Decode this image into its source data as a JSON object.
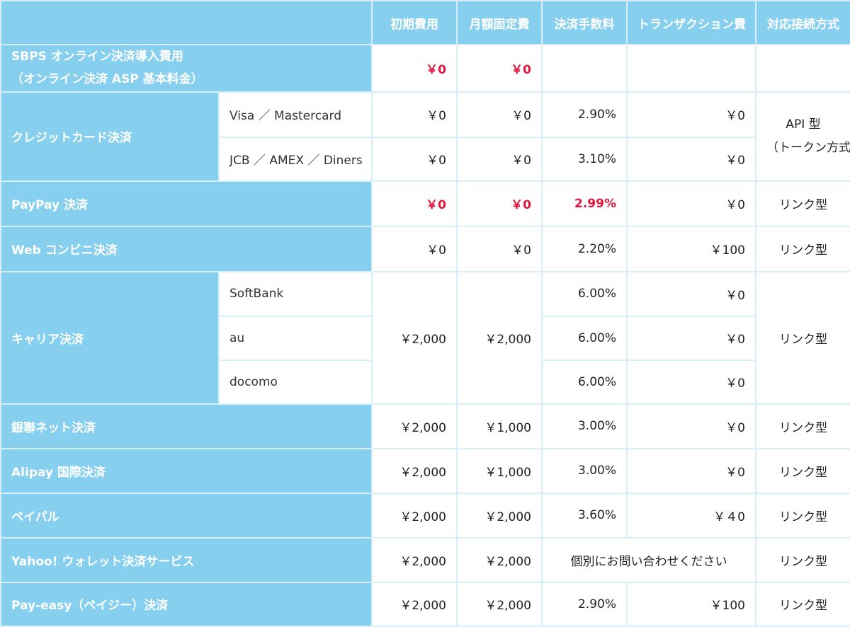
{
  "headers": [
    "初期費用",
    "月額固定費",
    "決済手数料",
    "トランザクション費",
    "対応接続方式"
  ],
  "rows": {
    "sbps": {
      "label1": "SBPS オンライン決済導入費用",
      "label2": "（オンライン決済 ASP 基本料金）",
      "initial": "￥0",
      "monthly": "￥0"
    },
    "credit": {
      "label": "クレジットカード決済",
      "sub1": "Visa ／ Mastercard",
      "sub1_initial": "￥0",
      "sub1_monthly": "￥0",
      "sub1_fee": "2.90%",
      "sub1_tx": "￥0",
      "sub2": "JCB ／ AMEX ／ Diners",
      "sub2_initial": "￥0",
      "sub2_monthly": "￥0",
      "sub2_fee": "3.10%",
      "sub2_tx": "￥0",
      "method1": "API 型",
      "method2": "（トークン方式）"
    },
    "paypay": {
      "label": "PayPay 決済",
      "initial": "￥0",
      "monthly": "￥0",
      "fee": "2.99%",
      "tx": "￥0",
      "method": "リンク型"
    },
    "web_conveni": {
      "label": "Web コンビニ決済",
      "initial": "￥0",
      "monthly": "￥0",
      "fee": "2.20%",
      "tx": "￥100",
      "method": "リンク型"
    },
    "carrier": {
      "label": "キャリア決済",
      "initial": "￥2,000",
      "monthly": "￥2,000",
      "method": "リンク型",
      "subs": [
        {
          "name": "SoftBank",
          "fee": "6.00%",
          "tx": "￥0"
        },
        {
          "name": "au",
          "fee": "6.00%",
          "tx": "￥0"
        },
        {
          "name": "docomo",
          "fee": "6.00%",
          "tx": "￥0"
        }
      ]
    },
    "unionpay": {
      "label": "銀聯ネット決済",
      "initial": "￥2,000",
      "monthly": "￥1,000",
      "fee": "3.00%",
      "tx": "￥0",
      "method": "リンク型"
    },
    "alipay": {
      "label": "Alipay 国際決済",
      "initial": "￥2,000",
      "monthly": "￥1,000",
      "fee": "3.00%",
      "tx": "￥0",
      "method": "リンク型"
    },
    "paypal": {
      "label": "ペイパル",
      "initial": "￥2,000",
      "monthly": "￥2,000",
      "fee": "3.60%",
      "tx": "￥４0",
      "method": "リンク型"
    },
    "yahoo": {
      "label": "Yahoo! ウォレット決済サービス",
      "initial": "￥2,000",
      "monthly": "￥2,000",
      "fee_note": "個別にお問い合わせください",
      "method": "リンク型"
    },
    "payeasy": {
      "label": "Pay-easy（ペイジー）決済",
      "initial": "￥2,000",
      "monthly": "￥2,000",
      "fee": "2.90%",
      "tx": "￥100",
      "method": "リンク型"
    }
  }
}
